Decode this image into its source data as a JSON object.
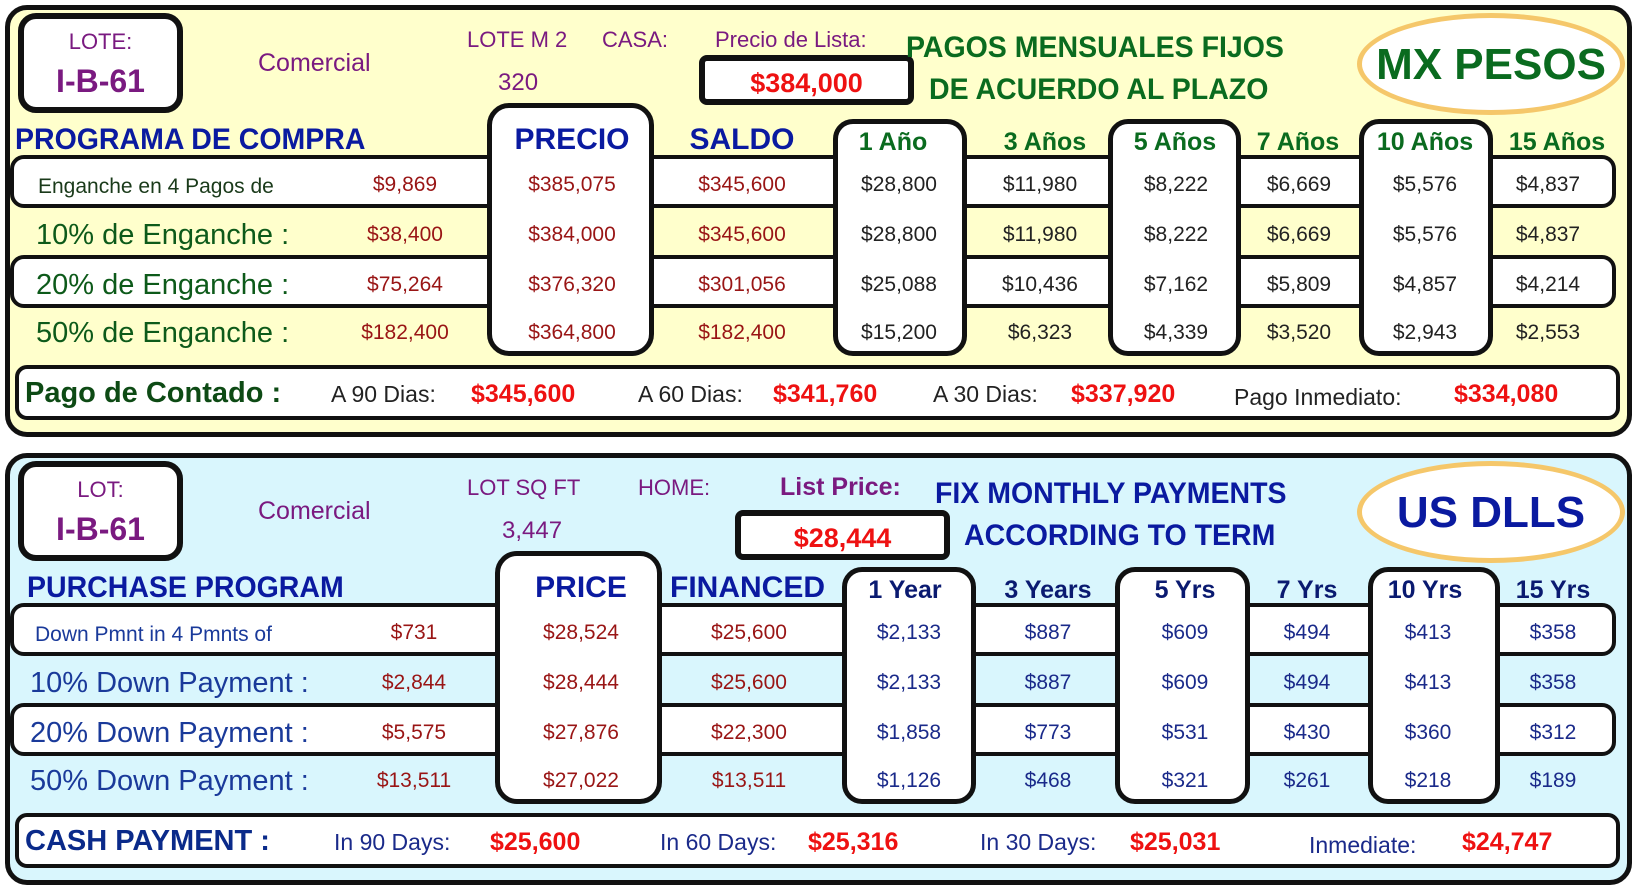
{
  "panels": [
    {
      "key": "mx",
      "bg": "#ffffcc",
      "lot_label": "LOTE:",
      "lot_value": "I-B-61",
      "type": "Comercial",
      "area_label": "LOTE M 2",
      "home_label": "CASA:",
      "area_value": "320",
      "list_price_label": "Precio de Lista:",
      "list_price": "$384,000",
      "title_line1": "PAGOS MENSUALES FIJOS",
      "title_line2": "DE ACUERDO AL PLAZO",
      "currency": "MX PESOS",
      "program_title": "PROGRAMA DE COMPRA",
      "price_header": "PRECIO",
      "balance_header": "SALDO",
      "term_headers": [
        "1 Año",
        "3 Años",
        "5 Años",
        "7 Años",
        "10 Años",
        "15 Años"
      ],
      "rows": [
        {
          "label": "Enganche en 4 Pagos de",
          "down": "$9,869",
          "price": "$385,075",
          "balance": "$345,600",
          "payments": [
            "$28,800",
            "$11,980",
            "$8,222",
            "$6,669",
            "$5,576",
            "$4,837"
          ]
        },
        {
          "label": "10% de Enganche :",
          "down": "$38,400",
          "price": "$384,000",
          "balance": "$345,600",
          "payments": [
            "$28,800",
            "$11,980",
            "$8,222",
            "$6,669",
            "$5,576",
            "$4,837"
          ]
        },
        {
          "label": "20% de Enganche :",
          "down": "$75,264",
          "price": "$376,320",
          "balance": "$301,056",
          "payments": [
            "$25,088",
            "$10,436",
            "$7,162",
            "$5,809",
            "$4,857",
            "$4,214"
          ]
        },
        {
          "label": "50% de Enganche :",
          "down": "$182,400",
          "price": "$364,800",
          "balance": "$182,400",
          "payments": [
            "$15,200",
            "$6,323",
            "$4,339",
            "$3,520",
            "$2,943",
            "$2,553"
          ]
        }
      ],
      "cash": {
        "label": "Pago de Contado :",
        "items": [
          {
            "label": "A 90 Dias:",
            "value": "$345,600"
          },
          {
            "label": "A 60 Dias:",
            "value": "$341,760"
          },
          {
            "label": "A 30 Dias:",
            "value": "$337,920"
          },
          {
            "label": "Pago Inmediato:",
            "value": "$334,080"
          }
        ]
      }
    },
    {
      "key": "us",
      "bg": "#d9f6fd",
      "lot_label": "LOT:",
      "lot_value": "I-B-61",
      "type": "Comercial",
      "area_label": "LOT SQ FT",
      "home_label": "HOME:",
      "area_value": "3,447",
      "list_price_label": "List Price:",
      "list_price": "$28,444",
      "title_line1": "FIX MONTHLY PAYMENTS",
      "title_line2": "ACCORDING TO TERM",
      "currency": "US DLLS",
      "program_title": "PURCHASE PROGRAM",
      "price_header": "PRICE",
      "balance_header": "FINANCED",
      "term_headers": [
        "1 Year",
        "3 Years",
        "5 Yrs",
        "7 Yrs",
        "10 Yrs",
        "15 Yrs"
      ],
      "rows": [
        {
          "label": "Down Pmnt in 4 Pmnts of",
          "down": "$731",
          "price": "$28,524",
          "balance": "$25,600",
          "payments": [
            "$2,133",
            "$887",
            "$609",
            "$494",
            "$413",
            "$358"
          ]
        },
        {
          "label": "10% Down Payment :",
          "down": "$2,844",
          "price": "$28,444",
          "balance": "$25,600",
          "payments": [
            "$2,133",
            "$887",
            "$609",
            "$494",
            "$413",
            "$358"
          ]
        },
        {
          "label": "20% Down Payment :",
          "down": "$5,575",
          "price": "$27,876",
          "balance": "$22,300",
          "payments": [
            "$1,858",
            "$773",
            "$531",
            "$430",
            "$360",
            "$312"
          ]
        },
        {
          "label": "50% Down Payment :",
          "down": "$13,511",
          "price": "$27,022",
          "balance": "$13,511",
          "payments": [
            "$1,126",
            "$468",
            "$321",
            "$261",
            "$218",
            "$189"
          ]
        }
      ],
      "cash": {
        "label": "CASH PAYMENT :",
        "items": [
          {
            "label": "In 90 Days:",
            "value": "$25,600"
          },
          {
            "label": "In 60 Days:",
            "value": "$25,316"
          },
          {
            "label": "In 30 Days:",
            "value": "$25,031"
          },
          {
            "label": "Inmediate:",
            "value": "$24,747"
          }
        ]
      }
    }
  ]
}
